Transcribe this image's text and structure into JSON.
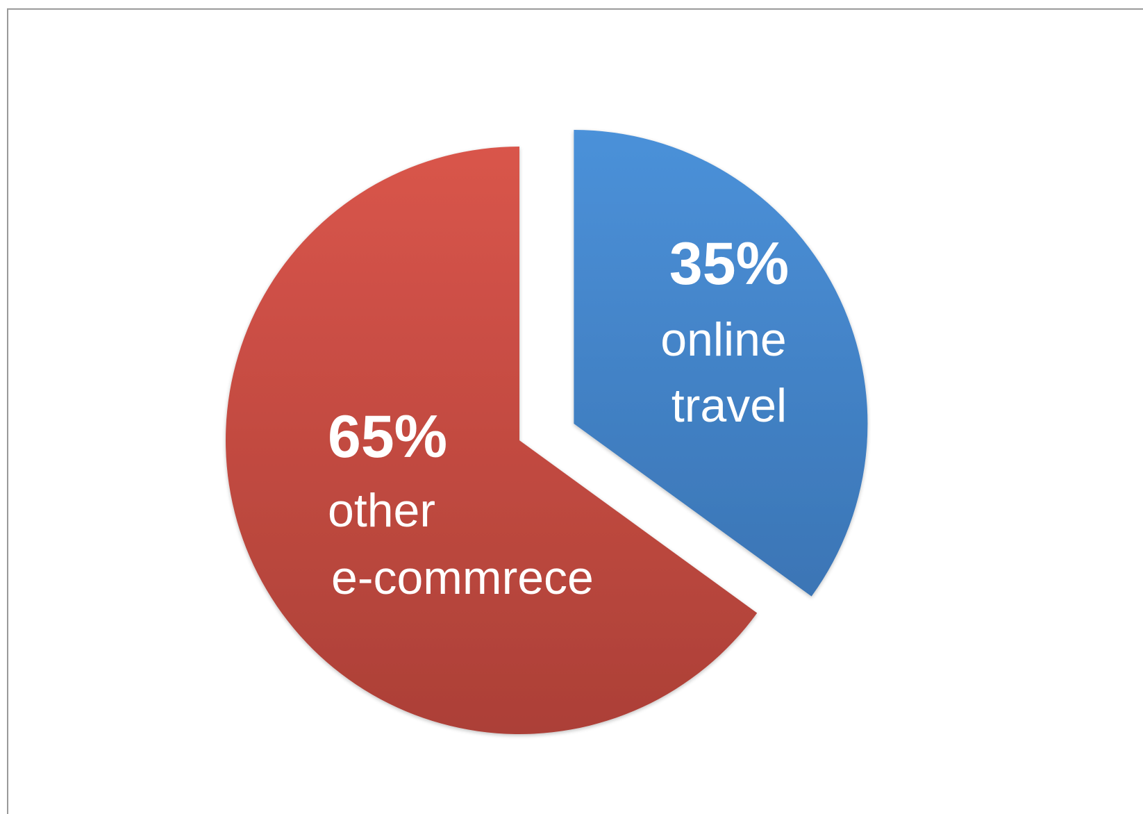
{
  "chart_data": {
    "type": "pie",
    "title": "",
    "slices": [
      {
        "percent_label": "35%",
        "value": 35,
        "label_lines": [
          "online",
          "travel"
        ],
        "color": "#4a8bd0",
        "color_dark": "#3a73b4",
        "exploded": true
      },
      {
        "percent_label": "65%",
        "value": 65,
        "label_lines": [
          "other",
          "e-commrece"
        ],
        "color": "#d6544a",
        "color_dark": "#b0413a",
        "exploded": false
      }
    ]
  }
}
